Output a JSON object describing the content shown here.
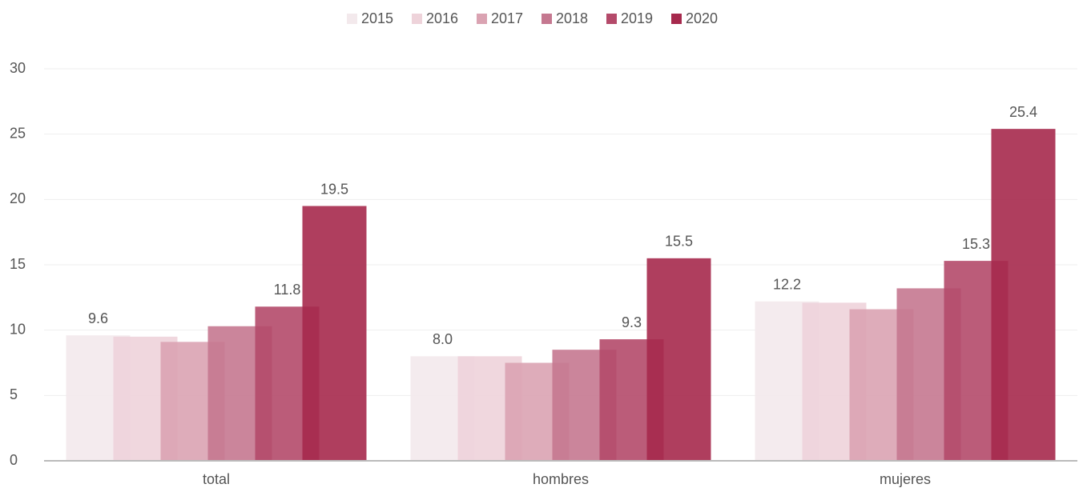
{
  "chart_data": {
    "type": "bar",
    "categories": [
      "total",
      "hombres",
      "mujeres"
    ],
    "series": [
      {
        "name": "2015",
        "color": "#f3e9ec",
        "values": [
          9.6,
          8.0,
          12.2
        ],
        "value_labels": [
          "9.6",
          "8.0",
          "12.2"
        ]
      },
      {
        "name": "2016",
        "color": "#eed3da",
        "values": [
          9.5,
          8.0,
          12.1
        ]
      },
      {
        "name": "2017",
        "color": "#daa3b2",
        "values": [
          9.1,
          7.5,
          11.6
        ]
      },
      {
        "name": "2018",
        "color": "#c57890",
        "values": [
          10.3,
          8.5,
          13.2
        ]
      },
      {
        "name": "2019",
        "color": "#b44a6a",
        "values": [
          11.8,
          9.3,
          15.3
        ],
        "value_labels": [
          "11.8",
          "9.3",
          "15.3"
        ]
      },
      {
        "name": "2020",
        "color": "#a6294d",
        "values": [
          19.5,
          15.5,
          25.4
        ],
        "value_labels": [
          "19.5",
          "15.5",
          "25.4"
        ]
      }
    ],
    "ylim": [
      0,
      30
    ],
    "yticks": [
      0,
      5,
      10,
      15,
      20,
      25,
      30
    ],
    "grid": true,
    "legend": "top"
  }
}
